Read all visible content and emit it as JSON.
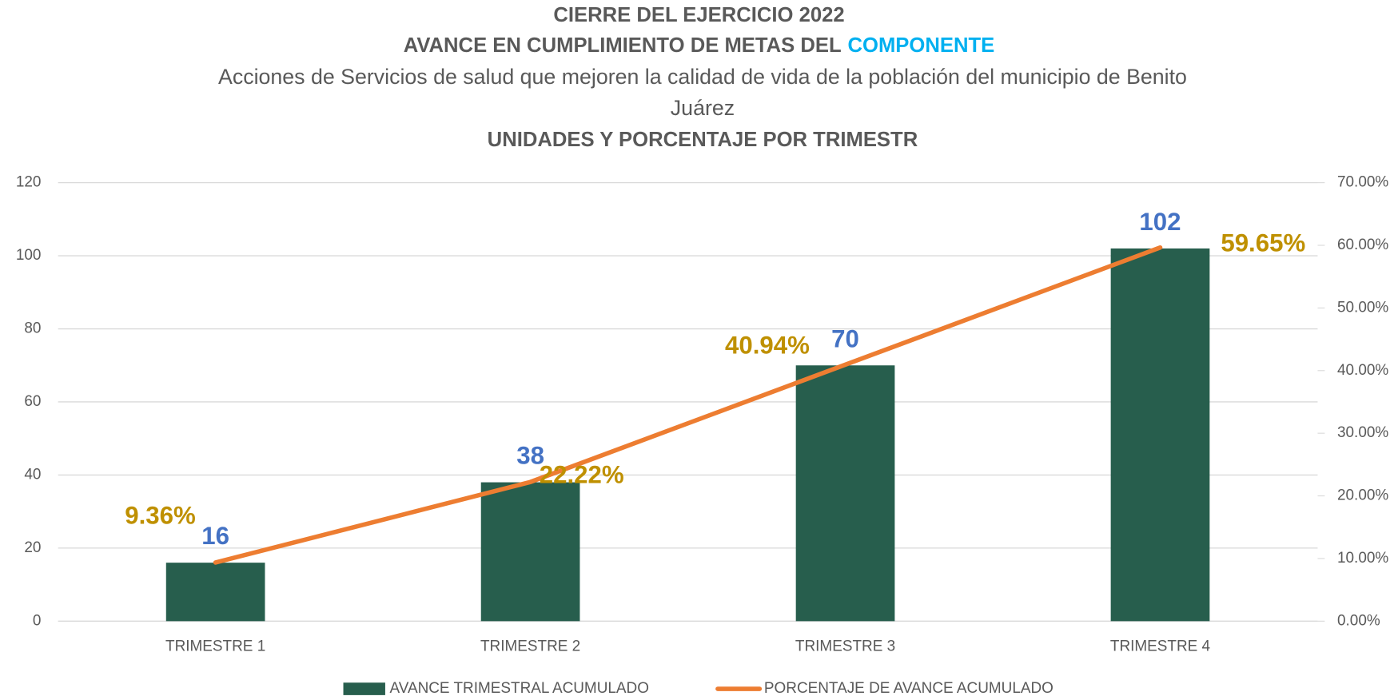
{
  "chart_data": {
    "type": "bar_line",
    "title": "CIERRE DEL EJERCICIO 2022",
    "subtitle": "AVANCE EN CUMPLIMIENTO DE METAS DEL",
    "subtitle_highlight": "COMPONENTE",
    "description": [
      "Acciones de Servicios de salud que mejoren la calidad de vida de la población del municipio de Benito",
      "Juárez"
    ],
    "subtitle_2": "UNIDADES Y PORCENTAJE POR TRIMESTR",
    "categories": [
      "TRIMESTRE 1",
      "TRIMESTRE 2",
      "TRIMESTRE 3",
      "TRIMESTRE 4"
    ],
    "series": [
      {
        "name": "AVANCE TRIMESTRAL ACUMULADO",
        "type": "bar",
        "color": "#275e4d",
        "label_color": "#4472c4",
        "values": [
          16,
          38,
          70,
          102
        ]
      },
      {
        "name": "PORCENTAJE DE AVANCE ACUMULADO",
        "type": "line",
        "axis": "y2",
        "color": "#ed7d31",
        "label_color": "#bf9000",
        "values": [
          9.36,
          22.22,
          40.94,
          59.65
        ],
        "value_labels": [
          "9.36%",
          "22.22%",
          "40.94%",
          "59.65%"
        ]
      }
    ],
    "ylim": [
      0,
      120
    ],
    "yticks": [
      0,
      20,
      40,
      60,
      80,
      100,
      120
    ],
    "y2lim": [
      0,
      70
    ],
    "y2ticks": [
      {
        "value": 0,
        "label": "0.00%"
      },
      {
        "value": 10,
        "label": "10.00%"
      },
      {
        "value": 20,
        "label": "20.00%"
      },
      {
        "value": 30,
        "label": "30.00%"
      },
      {
        "value": 40,
        "label": "40.00%"
      },
      {
        "value": 50,
        "label": "50.00%"
      },
      {
        "value": 60,
        "label": "60.00%"
      },
      {
        "value": 70,
        "label": "70.00%"
      }
    ],
    "grid": true,
    "legend": "bottom"
  }
}
